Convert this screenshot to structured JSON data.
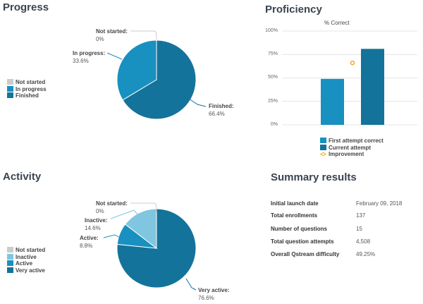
{
  "progress": {
    "title": "Progress",
    "chart_data": {
      "type": "pie",
      "title": "Progress",
      "slices": [
        {
          "name": "Not started",
          "value": 0,
          "label": "0%",
          "color": "#cccccc"
        },
        {
          "name": "In progress",
          "value": 33.6,
          "label": "33.6%",
          "color": "#1890c0"
        },
        {
          "name": "Finished",
          "value": 66.4,
          "label": "66.4%",
          "color": "#14739a"
        }
      ],
      "legend": [
        "Not started",
        "In progress",
        "Finished"
      ]
    },
    "labels": {
      "not_started": "Not started:",
      "in_progress": "In progress:",
      "finished": "Finished:"
    }
  },
  "proficiency": {
    "title": "Proficiency",
    "chart_data": {
      "type": "bar",
      "title": "% Correct",
      "ylim": [
        0,
        100
      ],
      "yticks": [
        "0%",
        "25%",
        "50%",
        "75%",
        "100%"
      ],
      "series": [
        {
          "name": "First attempt correct",
          "value": 49,
          "color": "#1890c0"
        },
        {
          "name": "Current attempt",
          "value": 81,
          "color": "#14739a"
        },
        {
          "name": "Improvement",
          "value": 66,
          "color": "#f5a623",
          "marker": "circle"
        }
      ]
    }
  },
  "activity": {
    "title": "Activity",
    "chart_data": {
      "type": "pie",
      "title": "Activity",
      "slices": [
        {
          "name": "Not started",
          "value": 0,
          "label": "0%",
          "color": "#cccccc"
        },
        {
          "name": "Inactive",
          "value": 14.6,
          "label": "14.6%",
          "color": "#80c6e0"
        },
        {
          "name": "Active",
          "value": 8.8,
          "label": "8.8%",
          "color": "#1890c0"
        },
        {
          "name": "Very active",
          "value": 76.6,
          "label": "76.6%",
          "color": "#14739a"
        }
      ],
      "legend": [
        "Not started",
        "Inactive",
        "Active",
        "Very active"
      ]
    },
    "labels": {
      "not_started": "Not started:",
      "inactive": "Inactive:",
      "active": "Active:",
      "very_active": "Very active:"
    }
  },
  "summary": {
    "title": "Summary results",
    "rows": [
      {
        "label": "Initial launch date",
        "value": "February 09, 2018"
      },
      {
        "label": "Total enrollments",
        "value": "137"
      },
      {
        "label": "Number of questions",
        "value": "15"
      },
      {
        "label": "Total question attempts",
        "value": "4,508"
      },
      {
        "label": "Overall Qstream difficulty",
        "value": "49.25%"
      }
    ]
  }
}
